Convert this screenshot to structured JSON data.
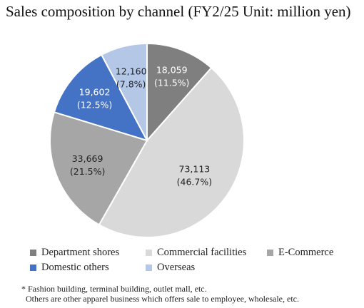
{
  "chart_data": {
    "type": "pie",
    "title": "Sales composition by channel (FY2/25 Unit: million yen)",
    "slices": [
      {
        "name": "Department shores",
        "value": 18059,
        "label": "18,059",
        "pct": "(11.5%)",
        "color": "#7f7f7f",
        "text_color": "#ffffff"
      },
      {
        "name": "Commercial facilities",
        "value": 73113,
        "label": "73,113",
        "pct": "(46.7%)",
        "color": "#d9d9d9",
        "text_color": "#222222"
      },
      {
        "name": "E-Commerce",
        "value": 33669,
        "label": "33,669",
        "pct": "(21.5%)",
        "color": "#a6a6a6",
        "text_color": "#222222"
      },
      {
        "name": "Domestic others",
        "value": 19602,
        "label": "19,602",
        "pct": "(12.5%)",
        "color": "#4472c4",
        "text_color": "#ffffff"
      },
      {
        "name": "Overseas",
        "value": 12160,
        "label": "12,160",
        "pct": "(7.8%)",
        "color": "#b4c7e7",
        "text_color": "#222222"
      }
    ],
    "legend_position": "bottom"
  },
  "notes": {
    "line1": "* Fashion building, terminal building, outlet mall, etc.",
    "line2": "Others are other apparel business which offers sale to employee, wholesale, etc."
  }
}
